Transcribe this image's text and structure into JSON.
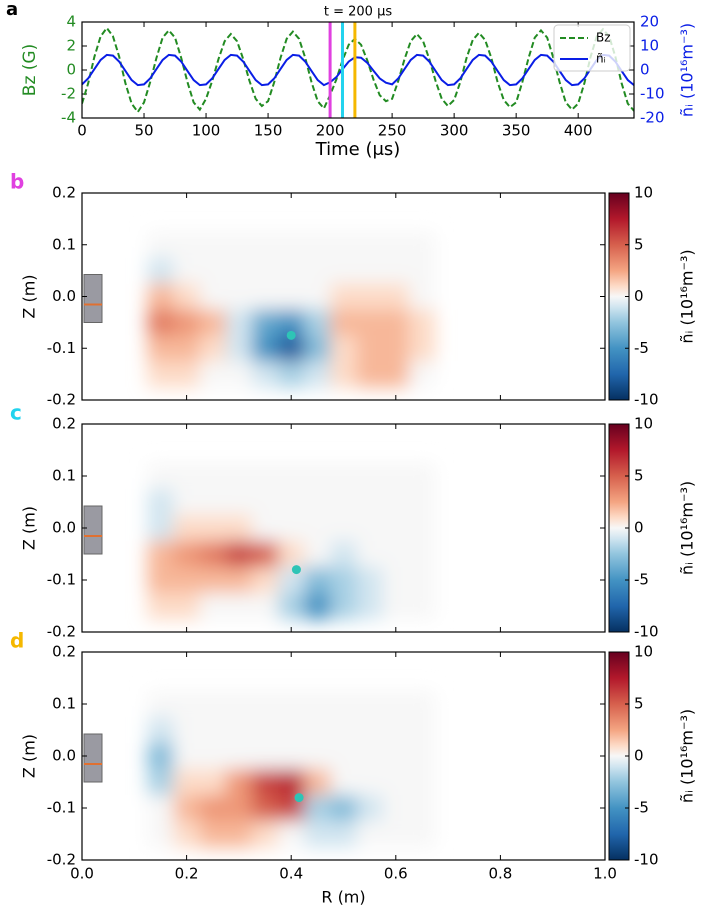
{
  "chart_data": [
    {
      "type": "line",
      "panel_label": "a",
      "title": "t = 200 μs",
      "xlabel": "Time (μs)",
      "ylabel": "Bz (G)",
      "y2label": "ñᵢ (10¹⁶m⁻³)",
      "xlim": [
        0,
        445
      ],
      "xticks": [
        0,
        50,
        100,
        150,
        200,
        250,
        300,
        350,
        400
      ],
      "ylim": [
        -4,
        4
      ],
      "yticks": [
        -4,
        -2,
        0,
        2,
        4
      ],
      "y2lim": [
        -20,
        20
      ],
      "y2ticks": [
        -20,
        -10,
        0,
        10,
        20
      ],
      "legend": "upper right",
      "x": [
        0,
        5,
        10,
        15,
        20,
        25,
        30,
        35,
        40,
        45,
        50,
        55,
        60,
        65,
        70,
        75,
        80,
        85,
        90,
        95,
        100,
        105,
        110,
        115,
        120,
        125,
        130,
        135,
        140,
        145,
        150,
        155,
        160,
        165,
        170,
        175,
        180,
        185,
        190,
        195,
        200,
        205,
        210,
        215,
        220,
        225,
        230,
        235,
        240,
        245,
        250,
        255,
        260,
        265,
        270,
        275,
        280,
        285,
        290,
        295,
        300,
        305,
        310,
        315,
        320,
        325,
        330,
        335,
        340,
        345,
        350,
        355,
        360,
        365,
        370,
        375,
        380,
        385,
        390,
        395,
        400,
        405,
        410,
        415,
        420,
        425,
        430,
        435,
        440,
        445
      ],
      "series": [
        {
          "name": "Bz",
          "color": "#228b22",
          "linestyle": "dashed",
          "values": [
            -2.8,
            -1.1,
            1.1,
            2.8,
            3.5,
            2.8,
            1.1,
            -1.1,
            -2.8,
            -3.5,
            -2.7,
            -1.0,
            1.0,
            2.7,
            3.3,
            2.7,
            1.0,
            -1.0,
            -2.7,
            -3.3,
            -2.4,
            -0.9,
            0.9,
            2.4,
            3.0,
            2.4,
            0.9,
            -0.9,
            -2.4,
            -3.0,
            -2.6,
            -1.0,
            1.0,
            2.6,
            3.2,
            2.6,
            1.0,
            -1.0,
            -2.6,
            -3.2,
            -2.1,
            -0.8,
            0.8,
            2.1,
            2.6,
            2.1,
            0.8,
            -0.8,
            -2.1,
            -2.6,
            -2.4,
            -0.9,
            0.9,
            2.4,
            3.0,
            2.4,
            0.9,
            -0.9,
            -2.4,
            -3.0,
            -2.5,
            -1.0,
            1.0,
            2.5,
            3.1,
            2.5,
            1.0,
            -1.0,
            -2.5,
            -3.1,
            -2.7,
            -1.0,
            1.0,
            2.7,
            3.3,
            2.7,
            1.0,
            -1.0,
            -2.7,
            -3.3,
            -2.8,
            -1.1,
            1.1,
            2.8,
            3.4,
            2.8,
            1.1,
            -1.1,
            -2.8,
            -3.4
          ]
        },
        {
          "name": "ñᵢ",
          "color": "#0a1ee6",
          "linestyle": "solid",
          "axis": "y2",
          "values": [
            -6.0,
            -3.5,
            0.4,
            4.2,
            6.3,
            6.0,
            3.5,
            -0.4,
            -4.2,
            -6.3,
            -6.0,
            -3.5,
            0.4,
            4.2,
            6.3,
            6.0,
            3.5,
            -0.4,
            -4.2,
            -6.3,
            -6.0,
            -3.5,
            0.4,
            4.2,
            6.3,
            6.0,
            3.5,
            -0.4,
            -4.2,
            -6.3,
            -6.0,
            -3.5,
            0.4,
            4.2,
            6.3,
            6.0,
            3.5,
            -0.4,
            -4.2,
            -6.3,
            -5.1,
            -3.0,
            0.3,
            3.5,
            5.3,
            5.1,
            3.0,
            -0.3,
            -3.5,
            -5.3,
            -6.0,
            -3.5,
            0.4,
            4.2,
            6.3,
            6.0,
            3.5,
            -0.4,
            -4.2,
            -6.3,
            -6.0,
            -3.5,
            0.4,
            4.2,
            6.3,
            6.0,
            3.5,
            -0.4,
            -4.2,
            -6.3,
            -6.0,
            -3.5,
            0.4,
            4.2,
            6.3,
            6.0,
            3.5,
            -0.4,
            -4.2,
            -6.3,
            -6.0,
            -3.5,
            0.4,
            4.2,
            6.3,
            6.0,
            3.5,
            -0.4,
            -4.2,
            -6.3
          ]
        }
      ],
      "vlines": [
        {
          "x": 200,
          "color": "#e040e0"
        },
        {
          "x": 210,
          "color": "#22d3ee"
        },
        {
          "x": 220,
          "color": "#f5b800"
        }
      ]
    },
    {
      "type": "heatmap",
      "panel_label": "b",
      "panel_label_color": "#e040e0",
      "ylabel": "Z (m)",
      "colorbar_label": "ñᵢ (10¹⁶m⁻³)",
      "colormap": "RdBu_r",
      "xlim": [
        0,
        1
      ],
      "xticks": [
        {
          "value": 0,
          "label": "0.0"
        },
        0.2,
        0.4,
        0.6,
        0.8,
        {
          "value": 1,
          "label": "1.0"
        }
      ],
      "show_xticklabels": false,
      "ylim": [
        -0.2,
        0.2
      ],
      "yticks": [
        -0.2,
        -0.1,
        {
          "value": 0,
          "label": "0.0"
        },
        0.1,
        0.2
      ],
      "clim": [
        -10,
        10
      ],
      "cticks": [
        -10,
        -5,
        0,
        5,
        10
      ],
      "x": [
        0.15,
        0.2,
        0.25,
        0.3,
        0.35,
        0.4,
        0.45,
        0.5,
        0.55,
        0.6,
        0.65
      ],
      "y": [
        0.1,
        0.05,
        0,
        -0.05,
        -0.1,
        -0.15
      ],
      "z": [
        [
          0,
          0,
          0,
          0,
          0,
          0,
          0,
          0,
          0,
          0,
          0
        ],
        [
          -1,
          0,
          0,
          0,
          0,
          0,
          0,
          0,
          0,
          0,
          0
        ],
        [
          2,
          1,
          0,
          0,
          0,
          0,
          0,
          1,
          1,
          1,
          0
        ],
        [
          4,
          3,
          2,
          -1,
          -4,
          -5,
          -2,
          2,
          2,
          2,
          1
        ],
        [
          2,
          2,
          1,
          -1,
          -5,
          -8,
          -3,
          1,
          2,
          2,
          1
        ],
        [
          1,
          1,
          0,
          0,
          -1,
          -2,
          -1,
          1,
          2,
          2,
          0
        ]
      ],
      "marker": {
        "x": 0.4,
        "y": -0.075,
        "color": "#2ec4b6"
      }
    },
    {
      "type": "heatmap",
      "panel_label": "c",
      "panel_label_color": "#22d3ee",
      "ylabel": "Z (m)",
      "colorbar_label": "ñᵢ (10¹⁶m⁻³)",
      "colormap": "RdBu_r",
      "xlim": [
        0,
        1
      ],
      "xticks": [
        {
          "value": 0,
          "label": "0.0"
        },
        0.2,
        0.4,
        0.6,
        0.8,
        {
          "value": 1,
          "label": "1.0"
        }
      ],
      "show_xticklabels": false,
      "ylim": [
        -0.2,
        0.2
      ],
      "yticks": [
        -0.2,
        -0.1,
        {
          "value": 0,
          "label": "0.0"
        },
        0.1,
        0.2
      ],
      "clim": [
        -10,
        10
      ],
      "cticks": [
        -10,
        -5,
        0,
        5,
        10
      ],
      "x": [
        0.15,
        0.2,
        0.25,
        0.3,
        0.35,
        0.4,
        0.45,
        0.5,
        0.55,
        0.6,
        0.65
      ],
      "y": [
        0.1,
        0.05,
        0,
        -0.05,
        -0.1,
        -0.15
      ],
      "z": [
        [
          0,
          0,
          0,
          0,
          0,
          0,
          0,
          0,
          0,
          0,
          0
        ],
        [
          -1,
          0,
          0,
          0,
          0,
          0,
          0,
          0,
          0,
          0,
          0
        ],
        [
          -1,
          1,
          1,
          1,
          0,
          0,
          0,
          0,
          0,
          0,
          0
        ],
        [
          2,
          3,
          4,
          6,
          5,
          1,
          0,
          -1,
          0,
          0,
          0
        ],
        [
          2,
          2,
          2,
          2,
          1,
          -1,
          -3,
          -2,
          -1,
          0,
          0
        ],
        [
          1,
          1,
          0,
          0,
          0,
          -2,
          -5,
          -2,
          -1,
          0,
          0
        ]
      ],
      "marker": {
        "x": 0.41,
        "y": -0.08,
        "color": "#2ec4b6"
      }
    },
    {
      "type": "heatmap",
      "panel_label": "d",
      "panel_label_color": "#f5b800",
      "xlabel": "R (m)",
      "ylabel": "Z (m)",
      "colorbar_label": "ñᵢ (10¹⁶m⁻³)",
      "colormap": "RdBu_r",
      "xlim": [
        0,
        1
      ],
      "xticks": [
        {
          "value": 0,
          "label": "0.0"
        },
        0.2,
        0.4,
        0.6,
        0.8,
        {
          "value": 1,
          "label": "1.0"
        }
      ],
      "show_xticklabels": true,
      "ylim": [
        -0.2,
        0.2
      ],
      "yticks": [
        -0.2,
        -0.1,
        {
          "value": 0,
          "label": "0.0"
        },
        0.1,
        0.2
      ],
      "clim": [
        -10,
        10
      ],
      "cticks": [
        -10,
        -5,
        0,
        5,
        10
      ],
      "x": [
        0.15,
        0.2,
        0.25,
        0.3,
        0.35,
        0.4,
        0.45,
        0.5,
        0.55,
        0.6,
        0.65
      ],
      "y": [
        0.1,
        0.05,
        0,
        -0.05,
        -0.1,
        -0.15
      ],
      "z": [
        [
          0,
          0,
          0,
          0,
          0,
          0,
          0,
          0,
          0,
          0,
          0
        ],
        [
          -1,
          0,
          0,
          0,
          0,
          0,
          0,
          0,
          0,
          0,
          0
        ],
        [
          -3,
          0,
          0,
          0,
          0,
          0,
          0,
          0,
          0,
          0,
          0
        ],
        [
          -2,
          1,
          1,
          3,
          6,
          7,
          2,
          0,
          0,
          0,
          0
        ],
        [
          0,
          2,
          3,
          3,
          5,
          6,
          -2,
          -3,
          -1,
          0,
          0
        ],
        [
          0,
          1,
          2,
          2,
          1,
          0,
          -1,
          -1,
          0,
          0,
          0
        ]
      ],
      "marker": {
        "x": 0.415,
        "y": -0.08,
        "color": "#2ec4b6"
      }
    }
  ]
}
